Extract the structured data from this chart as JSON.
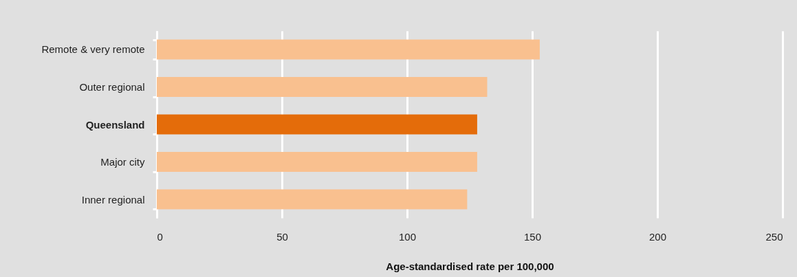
{
  "chart_data": {
    "type": "bar",
    "orientation": "horizontal",
    "xlabel": "Age-standardised rate per 100,000",
    "categories": [
      "Remote & very remote",
      "Outer regional",
      "Queensland",
      "Major city",
      "Inner regional"
    ],
    "values": [
      153,
      132,
      128,
      128,
      124
    ],
    "colors": [
      "#f9c08f",
      "#f9c08f",
      "#e46c0a",
      "#f9c08f",
      "#f9c08f"
    ],
    "xlim": [
      0,
      250
    ],
    "xticks": [
      0,
      50,
      100,
      150,
      200,
      250
    ],
    "grid": "x"
  }
}
